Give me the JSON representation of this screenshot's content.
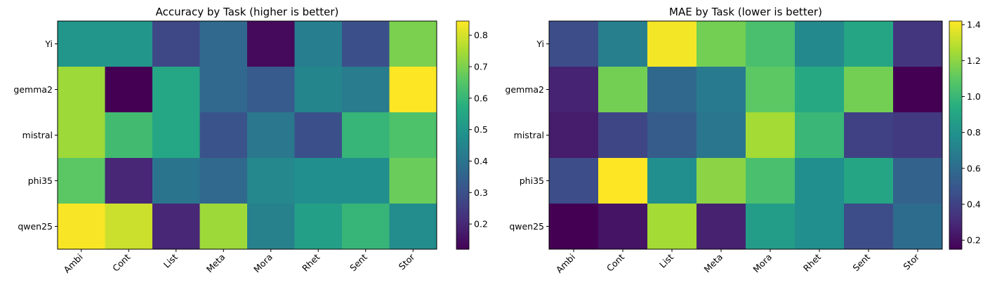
{
  "chart_data": [
    {
      "type": "heatmap",
      "title": "Accuracy by Task (higher is better)",
      "rows": [
        "Yi",
        "gemma2",
        "mistral",
        "phi35",
        "qwen25"
      ],
      "cols": [
        "Ambi",
        "Cont",
        "List",
        "Meta",
        "Mora",
        "Rhet",
        "Sent",
        "Stor"
      ],
      "values": [
        [
          0.5,
          0.5,
          0.28,
          0.37,
          0.14,
          0.43,
          0.3,
          0.7
        ],
        [
          0.74,
          0.12,
          0.55,
          0.37,
          0.33,
          0.45,
          0.42,
          0.845
        ],
        [
          0.74,
          0.62,
          0.55,
          0.31,
          0.41,
          0.3,
          0.6,
          0.64
        ],
        [
          0.66,
          0.2,
          0.4,
          0.37,
          0.46,
          0.48,
          0.48,
          0.68
        ],
        [
          0.84,
          0.79,
          0.2,
          0.74,
          0.44,
          0.53,
          0.6,
          0.47
        ]
      ],
      "colorbar_range": [
        0.12,
        0.845
      ],
      "colorbar_ticks": [
        "0.2",
        "0.3",
        "0.4",
        "0.5",
        "0.6",
        "0.7",
        "0.8"
      ],
      "colormap": "viridis"
    },
    {
      "type": "heatmap",
      "title": "MAE by Task (lower is better)",
      "rows": [
        "Yi",
        "gemma2",
        "mistral",
        "phi35",
        "qwen25"
      ],
      "cols": [
        "Ambi",
        "Cont",
        "List",
        "Meta",
        "Mora",
        "Rhet",
        "Sent",
        "Stor"
      ],
      "values": [
        [
          0.45,
          0.7,
          1.4,
          1.15,
          1.05,
          0.75,
          0.9,
          0.35
        ],
        [
          0.28,
          1.15,
          0.58,
          0.68,
          1.1,
          0.92,
          1.15,
          0.15
        ],
        [
          0.25,
          0.42,
          0.52,
          0.65,
          1.25,
          1.0,
          0.4,
          0.37
        ],
        [
          0.45,
          1.42,
          0.78,
          1.2,
          1.05,
          0.78,
          0.9,
          0.55
        ],
        [
          0.15,
          0.22,
          1.25,
          0.27,
          0.85,
          0.78,
          0.45,
          0.6
        ]
      ],
      "colorbar_range": [
        0.15,
        1.42
      ],
      "colorbar_ticks": [
        "0.2",
        "0.4",
        "0.6",
        "0.8",
        "1.0",
        "1.2",
        "1.4"
      ],
      "colormap": "viridis"
    }
  ]
}
